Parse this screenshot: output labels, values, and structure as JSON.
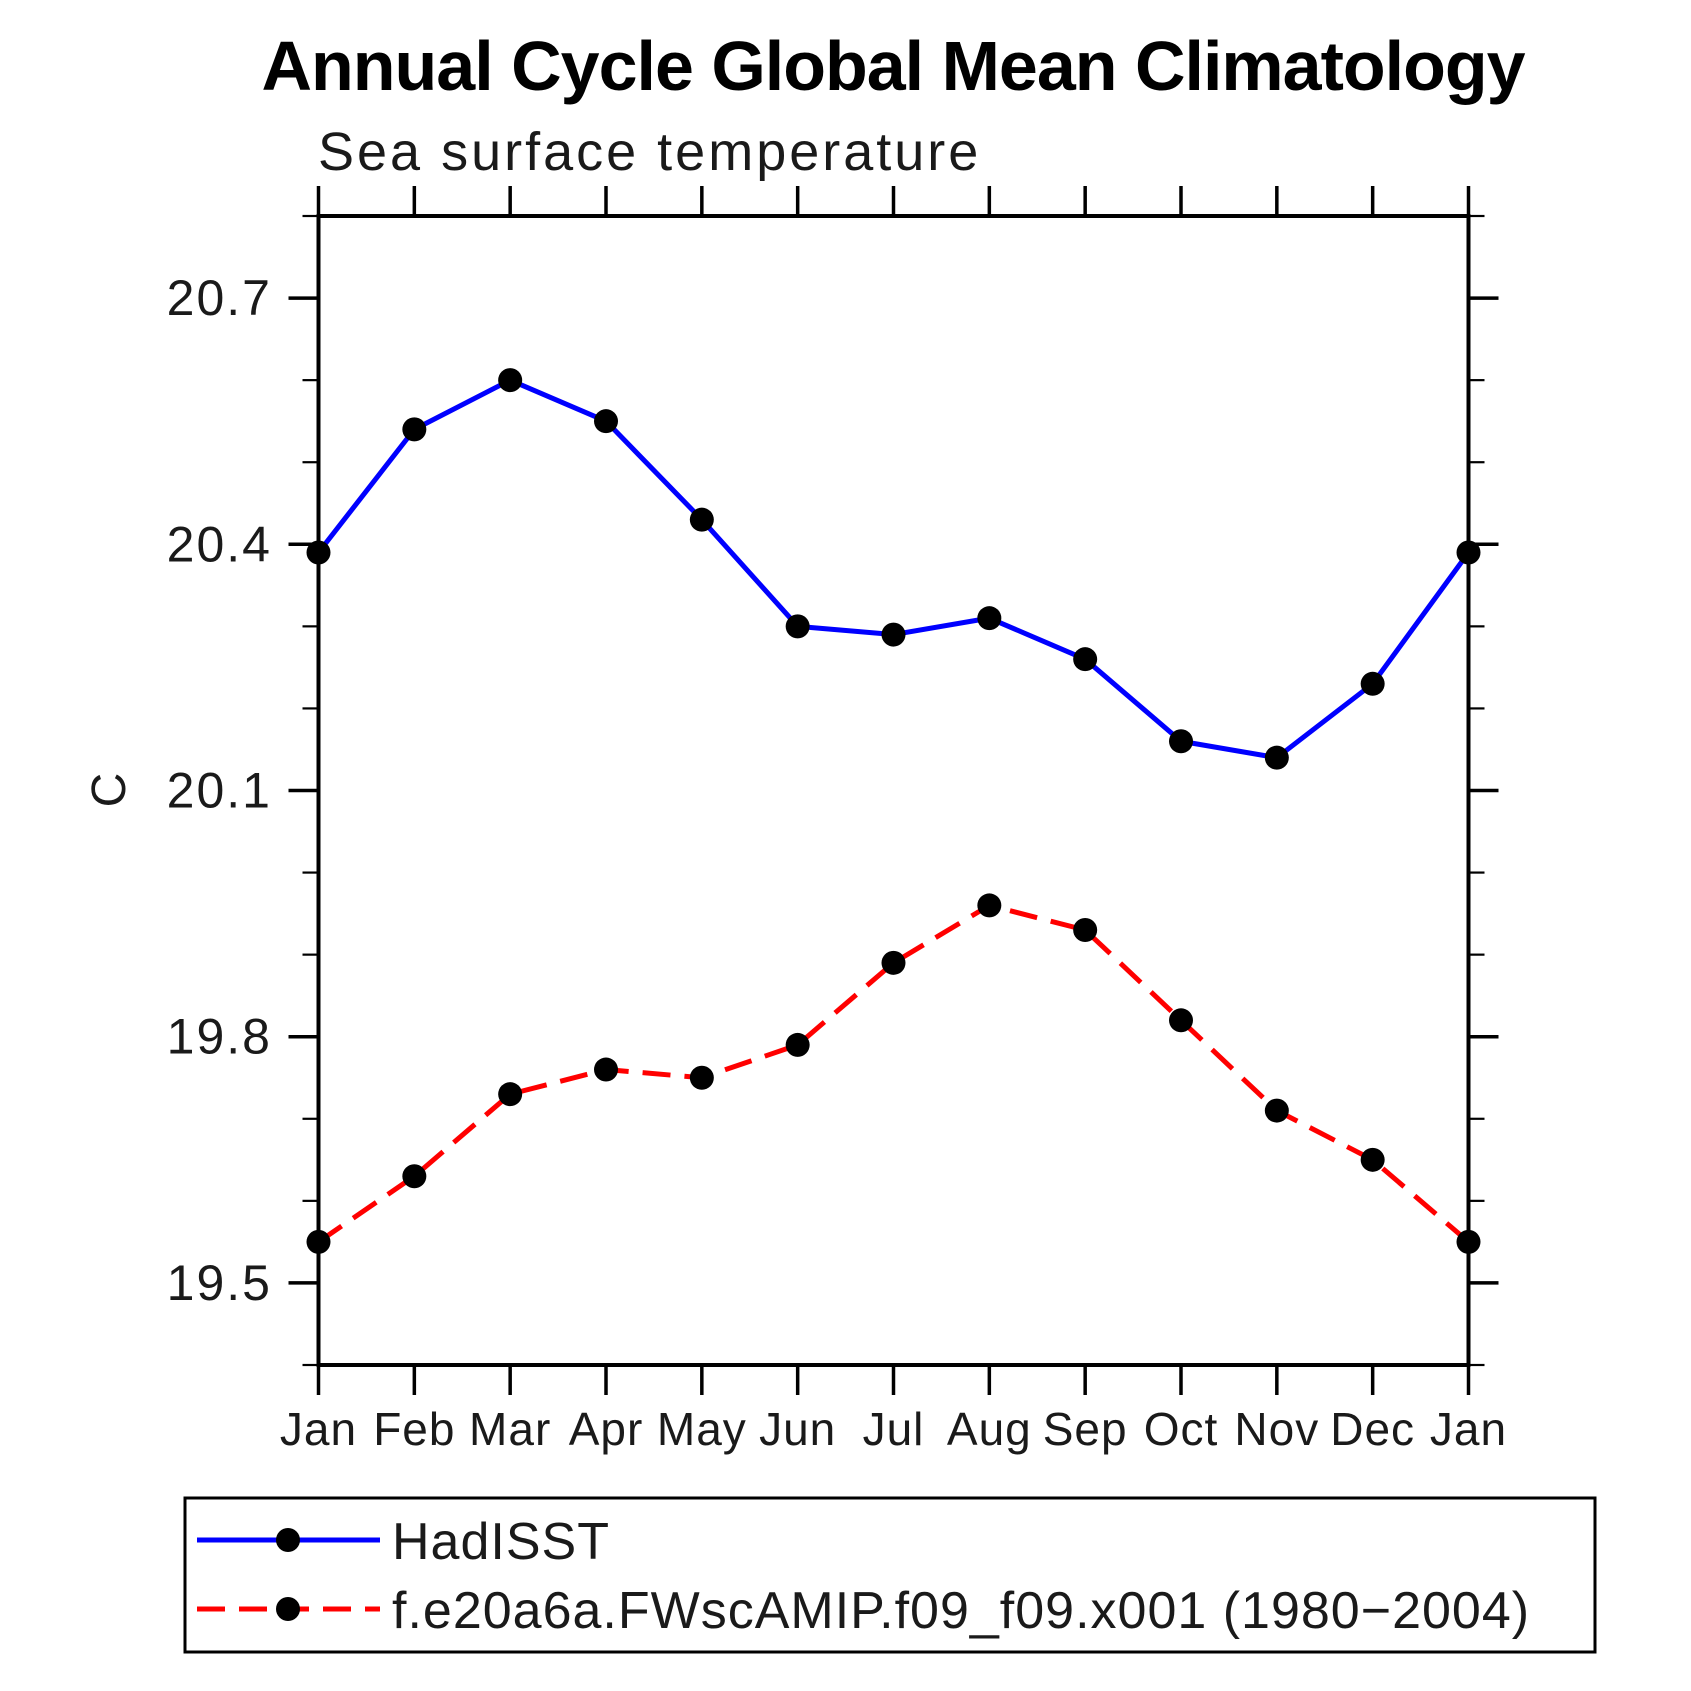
{
  "chart": {
    "title": "Annual Cycle Global Mean Climatology",
    "subtitle": "Sea surface temperature",
    "y_axis_label": "C"
  },
  "chart_data": {
    "type": "line",
    "title": "Annual Cycle Global Mean Climatology",
    "subtitle": "Sea surface temperature",
    "xlabel": "",
    "ylabel": "C",
    "x_categories": [
      "Jan",
      "Feb",
      "Mar",
      "Apr",
      "May",
      "Jun",
      "Jul",
      "Aug",
      "Sep",
      "Oct",
      "Nov",
      "Dec",
      "Jan"
    ],
    "ylim": [
      19.4,
      20.8
    ],
    "y_major_ticks": [
      20.7,
      20.4,
      20.1,
      19.8,
      19.5
    ],
    "y_minor_step": 0.1,
    "grid": false,
    "legend_position": "bottom-left-boxed",
    "marker_color": "#000000",
    "series": [
      {
        "name": "HadISST",
        "color": "#0000ff",
        "style": "solid",
        "marker": "circle",
        "values": [
          20.39,
          20.54,
          20.6,
          20.55,
          20.43,
          20.3,
          20.29,
          20.31,
          20.26,
          20.16,
          20.14,
          20.23,
          20.39
        ]
      },
      {
        "name": "f.e20a6a.FWscAMIP.f09_f09.x001 (1980−2004)",
        "color": "#ff0000",
        "style": "dashed",
        "marker": "circle",
        "values": [
          19.55,
          19.63,
          19.73,
          19.76,
          19.75,
          19.79,
          19.89,
          19.96,
          19.93,
          19.82,
          19.71,
          19.65,
          19.55
        ]
      }
    ]
  }
}
